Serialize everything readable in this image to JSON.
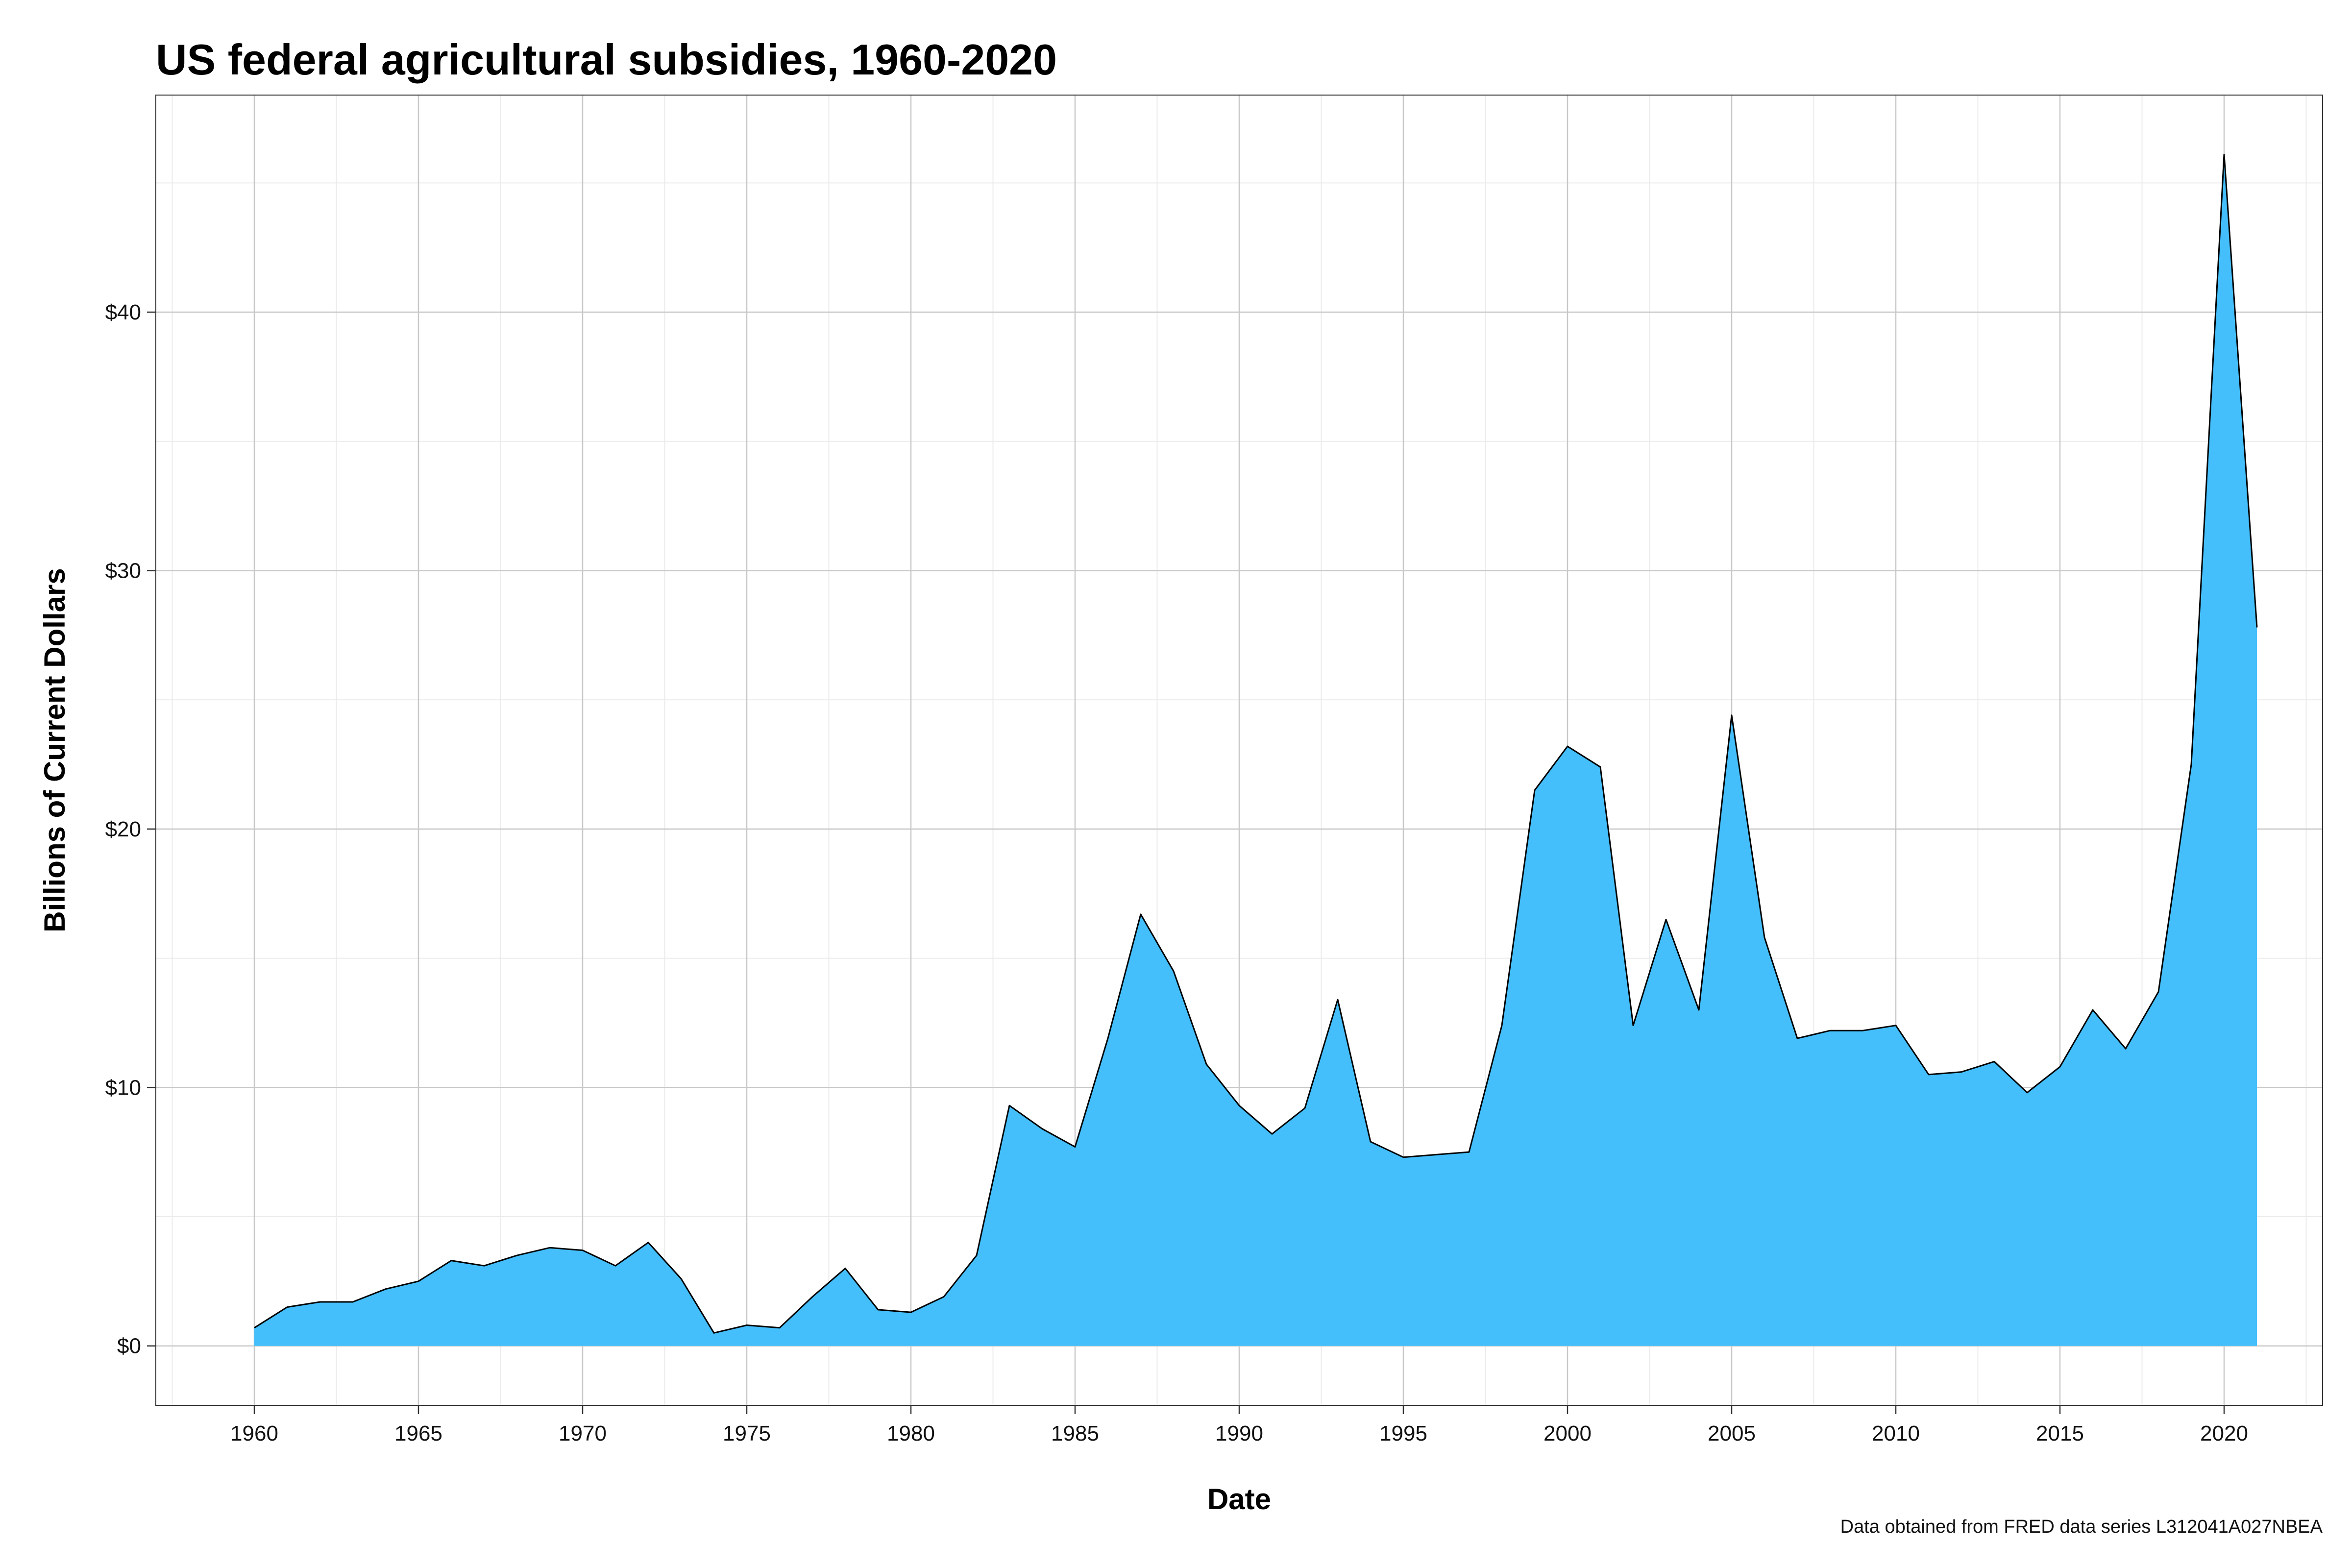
{
  "chart_data": {
    "type": "area",
    "title": "US federal agricultural subsidies, 1960-2020",
    "xlabel": "Date",
    "ylabel": "Billions of Current Dollars",
    "caption": "Data obtained from FRED data series L312041A027NBEA",
    "xlim": [
      1957,
      2023
    ],
    "ylim": [
      -2.3,
      48.4
    ],
    "x_ticks": [
      1960,
      1965,
      1970,
      1975,
      1980,
      1985,
      1990,
      1995,
      2000,
      2005,
      2010,
      2015,
      2020
    ],
    "y_ticks": [
      0,
      10,
      20,
      30,
      40
    ],
    "y_tick_labels": [
      "$0",
      "$10",
      "$20",
      "$30",
      "$40"
    ],
    "grid": true,
    "legend": "none",
    "fill_color": "#45BFFB",
    "line_color": "#000000",
    "x": [
      1960,
      1961,
      1962,
      1963,
      1964,
      1965,
      1966,
      1967,
      1968,
      1969,
      1970,
      1971,
      1972,
      1973,
      1974,
      1975,
      1976,
      1977,
      1978,
      1979,
      1980,
      1981,
      1982,
      1983,
      1984,
      1985,
      1986,
      1987,
      1988,
      1989,
      1990,
      1991,
      1992,
      1993,
      1994,
      1995,
      1996,
      1997,
      1998,
      1999,
      2000,
      2001,
      2002,
      2003,
      2004,
      2005,
      2006,
      2007,
      2008,
      2009,
      2010,
      2011,
      2012,
      2013,
      2014,
      2015,
      2016,
      2017,
      2018,
      2019,
      2020,
      2021
    ],
    "values": [
      0.7,
      1.5,
      1.7,
      1.7,
      2.2,
      2.5,
      3.3,
      3.1,
      3.5,
      3.8,
      3.7,
      3.1,
      4.0,
      2.6,
      0.5,
      0.8,
      0.7,
      1.9,
      3.0,
      1.4,
      1.3,
      1.9,
      3.5,
      9.3,
      8.4,
      7.7,
      11.9,
      16.7,
      14.5,
      10.9,
      9.3,
      8.2,
      9.2,
      13.4,
      7.9,
      7.3,
      7.4,
      7.5,
      12.4,
      21.5,
      23.2,
      22.4,
      12.4,
      16.5,
      13.0,
      24.4,
      15.8,
      11.9,
      12.2,
      12.2,
      12.4,
      10.5,
      10.6,
      11.0,
      9.8,
      10.8,
      13.0,
      11.5,
      13.7,
      22.5,
      46.1,
      27.8
    ]
  }
}
